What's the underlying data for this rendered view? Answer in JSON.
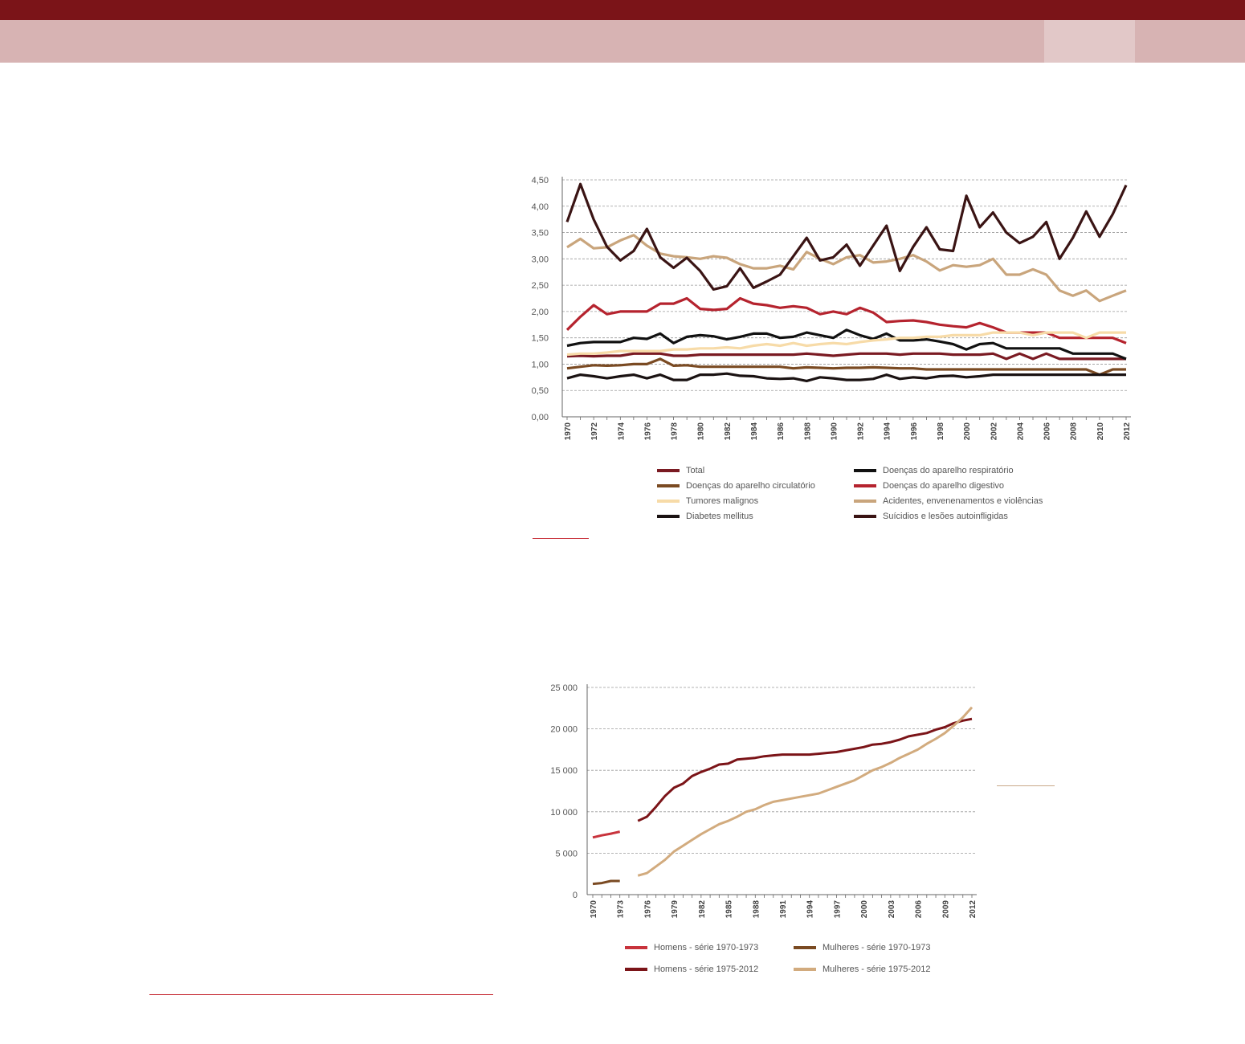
{
  "colors": {
    "header_dark": "#7b1418",
    "header_light": "#d7b3b3",
    "header_tab": "#e2c8c8",
    "rule_red": "#c8333c",
    "rule_tan": "#c9a98a"
  },
  "chart1": {
    "chart_data": {
      "type": "line",
      "x": [
        1970,
        1971,
        1972,
        1973,
        1974,
        1975,
        1976,
        1977,
        1978,
        1979,
        1980,
        1981,
        1982,
        1983,
        1984,
        1985,
        1986,
        1987,
        1988,
        1989,
        1990,
        1991,
        1992,
        1993,
        1994,
        1995,
        1996,
        1997,
        1998,
        1999,
        2000,
        2001,
        2002,
        2003,
        2004,
        2005,
        2006,
        2007,
        2008,
        2009,
        2010,
        2011,
        2012
      ],
      "x_tick_labels": [
        "1970",
        "1972",
        "1974",
        "1976",
        "1978",
        "1980",
        "1982",
        "1984",
        "1986",
        "1988",
        "1990",
        "1992",
        "1994",
        "1996",
        "1998",
        "2000",
        "2002",
        "2004",
        "2006",
        "2008",
        "2010",
        "2012"
      ],
      "y_tick_labels": [
        "0,00",
        "0,50",
        "1,00",
        "1,50",
        "2,00",
        "2,50",
        "3,00",
        "3,50",
        "4,00",
        "4,50"
      ],
      "ylim": [
        0,
        4.5
      ],
      "grid": true,
      "legend_position": "bottom",
      "series": [
        {
          "name": "Total",
          "color": "#7a1a22",
          "values": [
            1.15,
            1.16,
            1.15,
            1.16,
            1.16,
            1.2,
            1.2,
            1.2,
            1.16,
            1.16,
            1.18,
            1.18,
            1.18,
            1.18,
            1.18,
            1.18,
            1.18,
            1.18,
            1.2,
            1.18,
            1.16,
            1.18,
            1.2,
            1.2,
            1.2,
            1.18,
            1.2,
            1.2,
            1.2,
            1.18,
            1.18,
            1.18,
            1.2,
            1.1,
            1.2,
            1.1,
            1.2,
            1.1,
            1.1,
            1.1,
            1.1,
            1.1,
            1.1
          ]
        },
        {
          "name": "Doenças do aparelho respiratório",
          "color": "#111111",
          "values": [
            1.35,
            1.4,
            1.42,
            1.42,
            1.42,
            1.5,
            1.48,
            1.58,
            1.4,
            1.52,
            1.55,
            1.53,
            1.47,
            1.52,
            1.58,
            1.58,
            1.5,
            1.52,
            1.6,
            1.55,
            1.5,
            1.65,
            1.55,
            1.48,
            1.58,
            1.45,
            1.45,
            1.47,
            1.43,
            1.38,
            1.28,
            1.38,
            1.4,
            1.3,
            1.3,
            1.3,
            1.3,
            1.3,
            1.2,
            1.2,
            1.2,
            1.2,
            1.1
          ]
        },
        {
          "name": "Doenças do aparelho circulatório",
          "color": "#7a4a22",
          "values": [
            0.92,
            0.95,
            0.98,
            0.97,
            0.98,
            1.0,
            1.0,
            1.1,
            0.97,
            0.98,
            0.95,
            0.95,
            0.95,
            0.95,
            0.95,
            0.95,
            0.95,
            0.92,
            0.94,
            0.93,
            0.92,
            0.93,
            0.93,
            0.94,
            0.93,
            0.92,
            0.92,
            0.9,
            0.9,
            0.9,
            0.9,
            0.9,
            0.9,
            0.9,
            0.9,
            0.9,
            0.9,
            0.9,
            0.9,
            0.9,
            0.8,
            0.9,
            0.9
          ]
        },
        {
          "name": "Doenças do aparelho digestivo",
          "color": "#b5232e",
          "values": [
            1.65,
            1.9,
            2.12,
            1.95,
            2.0,
            2.0,
            2.0,
            2.15,
            2.15,
            2.25,
            2.05,
            2.03,
            2.05,
            2.25,
            2.15,
            2.12,
            2.07,
            2.1,
            2.07,
            1.95,
            2.0,
            1.95,
            2.07,
            1.98,
            1.8,
            1.82,
            1.83,
            1.8,
            1.75,
            1.72,
            1.7,
            1.78,
            1.7,
            1.6,
            1.6,
            1.6,
            1.6,
            1.5,
            1.5,
            1.5,
            1.5,
            1.5,
            1.4
          ]
        },
        {
          "name": "Tumores malignos",
          "color": "#f7dba8",
          "values": [
            1.18,
            1.2,
            1.2,
            1.22,
            1.25,
            1.25,
            1.25,
            1.25,
            1.28,
            1.28,
            1.3,
            1.3,
            1.32,
            1.3,
            1.35,
            1.38,
            1.35,
            1.4,
            1.35,
            1.38,
            1.4,
            1.38,
            1.42,
            1.45,
            1.47,
            1.5,
            1.5,
            1.52,
            1.52,
            1.55,
            1.55,
            1.55,
            1.6,
            1.6,
            1.6,
            1.55,
            1.6,
            1.6,
            1.6,
            1.5,
            1.6,
            1.6,
            1.6
          ]
        },
        {
          "name": "Acidentes, envenenamentos e violências",
          "color": "#c9a57c",
          "values": [
            3.22,
            3.38,
            3.2,
            3.22,
            3.35,
            3.45,
            3.25,
            3.1,
            3.05,
            3.03,
            3.0,
            3.05,
            3.02,
            2.9,
            2.82,
            2.82,
            2.87,
            2.8,
            3.13,
            3.0,
            2.9,
            3.03,
            3.07,
            2.93,
            2.95,
            3.0,
            3.07,
            2.95,
            2.78,
            2.88,
            2.85,
            2.88,
            3.0,
            2.7,
            2.7,
            2.8,
            2.7,
            2.4,
            2.3,
            2.4,
            2.2,
            2.3,
            2.4
          ]
        },
        {
          "name": "Diabetes mellitus",
          "color": "#1a1212",
          "values": [
            0.73,
            0.8,
            0.77,
            0.73,
            0.77,
            0.8,
            0.73,
            0.8,
            0.7,
            0.7,
            0.8,
            0.8,
            0.82,
            0.78,
            0.77,
            0.73,
            0.72,
            0.73,
            0.68,
            0.75,
            0.73,
            0.7,
            0.7,
            0.72,
            0.8,
            0.72,
            0.75,
            0.73,
            0.77,
            0.78,
            0.75,
            0.77,
            0.8,
            0.8,
            0.8,
            0.8,
            0.8,
            0.8,
            0.8,
            0.8,
            0.8,
            0.8,
            0.8
          ]
        },
        {
          "name": "Suícidios e lesões autoinfligidas",
          "color": "#3a1414",
          "values": [
            3.7,
            4.42,
            3.75,
            3.23,
            2.97,
            3.15,
            3.57,
            3.03,
            2.83,
            3.02,
            2.77,
            2.42,
            2.48,
            2.82,
            2.45,
            2.57,
            2.7,
            3.05,
            3.4,
            2.97,
            3.03,
            3.27,
            2.87,
            3.25,
            3.63,
            2.77,
            3.23,
            3.6,
            3.18,
            3.15,
            4.2,
            3.6,
            3.88,
            3.5,
            3.3,
            3.42,
            3.7,
            3.0,
            3.4,
            3.9,
            3.42,
            3.85,
            4.4
          ]
        }
      ]
    }
  },
  "chart2": {
    "chart_data": {
      "type": "line",
      "x_tick_labels": [
        "1970",
        "1973",
        "1976",
        "1979",
        "1982",
        "1985",
        "1988",
        "1991",
        "1994",
        "1997",
        "2000",
        "2003",
        "2006",
        "2009",
        "2012"
      ],
      "y_tick_labels": [
        "0",
        "5 000",
        "10 000",
        "15 000",
        "20 000",
        "25 000"
      ],
      "ylim": [
        0,
        25000
      ],
      "grid": true,
      "legend_position": "bottom",
      "series": [
        {
          "name": "Homens - série 1970-1973",
          "color": "#c8333c",
          "x": [
            1970,
            1971,
            1972,
            1973
          ],
          "values": [
            6900,
            7150,
            7350,
            7600
          ]
        },
        {
          "name": "Mulheres - série 1970-1973",
          "color": "#7a4a22",
          "x": [
            1970,
            1971,
            1972,
            1973
          ],
          "values": [
            1300,
            1400,
            1650,
            1650
          ]
        },
        {
          "name": "Homens - série 1975-2012",
          "color": "#7b1418",
          "x": [
            1975,
            1976,
            1977,
            1978,
            1979,
            1980,
            1981,
            1982,
            1983,
            1984,
            1985,
            1986,
            1987,
            1988,
            1989,
            1990,
            1991,
            1992,
            1993,
            1994,
            1995,
            1996,
            1997,
            1998,
            1999,
            2000,
            2001,
            2002,
            2003,
            2004,
            2005,
            2006,
            2007,
            2008,
            2009,
            2010,
            2011,
            2012
          ],
          "values": [
            8900,
            9400,
            10600,
            11900,
            12900,
            13400,
            14300,
            14800,
            15200,
            15700,
            15800,
            16300,
            16400,
            16500,
            16700,
            16800,
            16900,
            16900,
            16900,
            16900,
            17000,
            17100,
            17200,
            17400,
            17600,
            17800,
            18100,
            18200,
            18400,
            18700,
            19100,
            19300,
            19500,
            19900,
            20200,
            20700,
            21000,
            21200
          ]
        },
        {
          "name": "Mulheres - série 1975-2012",
          "color": "#d2ab7e",
          "x": [
            1975,
            1976,
            1977,
            1978,
            1979,
            1980,
            1981,
            1982,
            1983,
            1984,
            1985,
            1986,
            1987,
            1988,
            1989,
            1990,
            1991,
            1992,
            1993,
            1994,
            1995,
            1996,
            1997,
            1998,
            1999,
            2000,
            2001,
            2002,
            2003,
            2004,
            2005,
            2006,
            2007,
            2008,
            2009,
            2010,
            2011,
            2012
          ],
          "values": [
            2300,
            2600,
            3400,
            4200,
            5200,
            5900,
            6600,
            7300,
            7900,
            8500,
            8900,
            9400,
            10000,
            10300,
            10800,
            11200,
            11400,
            11600,
            11800,
            12000,
            12200,
            12600,
            13000,
            13400,
            13800,
            14400,
            15000,
            15400,
            15900,
            16500,
            17000,
            17500,
            18200,
            18800,
            19500,
            20400,
            21400,
            22600
          ]
        }
      ]
    }
  }
}
